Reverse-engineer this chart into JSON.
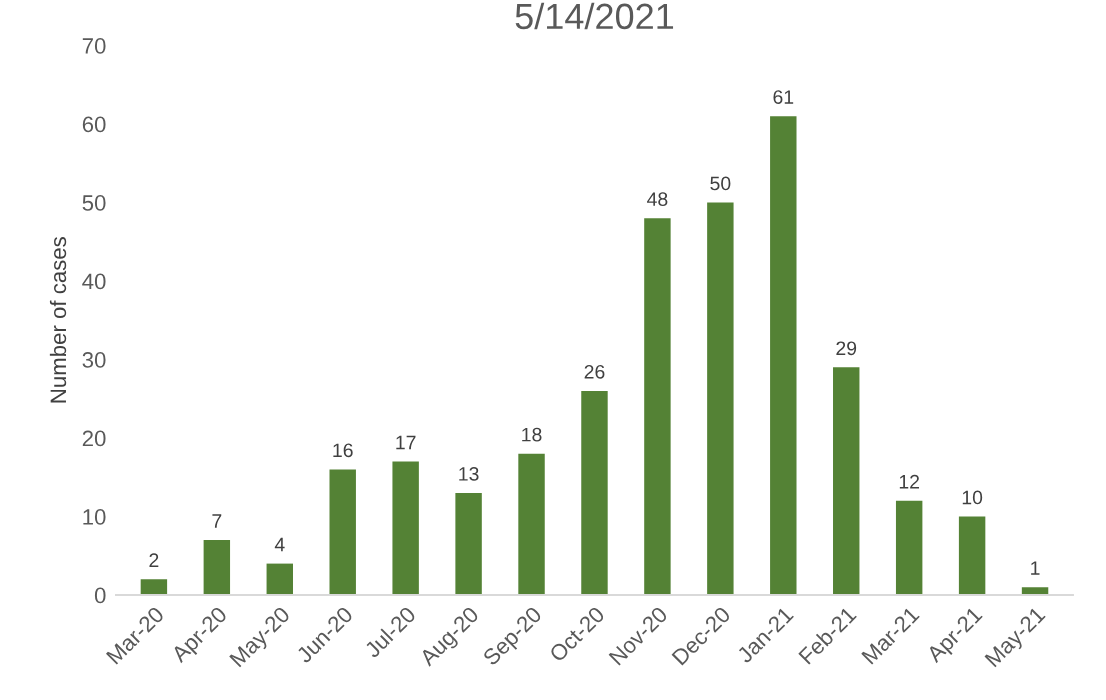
{
  "chart_data": {
    "type": "bar",
    "title": "5/14/2021",
    "ylabel": "Number of cases",
    "categories": [
      "Mar-20",
      "Apr-20",
      "May-20",
      "Jun-20",
      "Jul-20",
      "Aug-20",
      "Sep-20",
      "Oct-20",
      "Nov-20",
      "Dec-20",
      "Jan-21",
      "Feb-21",
      "Mar-21",
      "Apr-21",
      "May-21"
    ],
    "values": [
      2,
      7,
      4,
      16,
      17,
      13,
      18,
      26,
      48,
      50,
      61,
      29,
      12,
      10,
      1
    ],
    "color": "#548235",
    "ylim": [
      0,
      70
    ],
    "yticks": [
      0,
      10,
      20,
      30,
      40,
      50,
      60,
      70
    ],
    "grid": false,
    "data_labels": true
  }
}
